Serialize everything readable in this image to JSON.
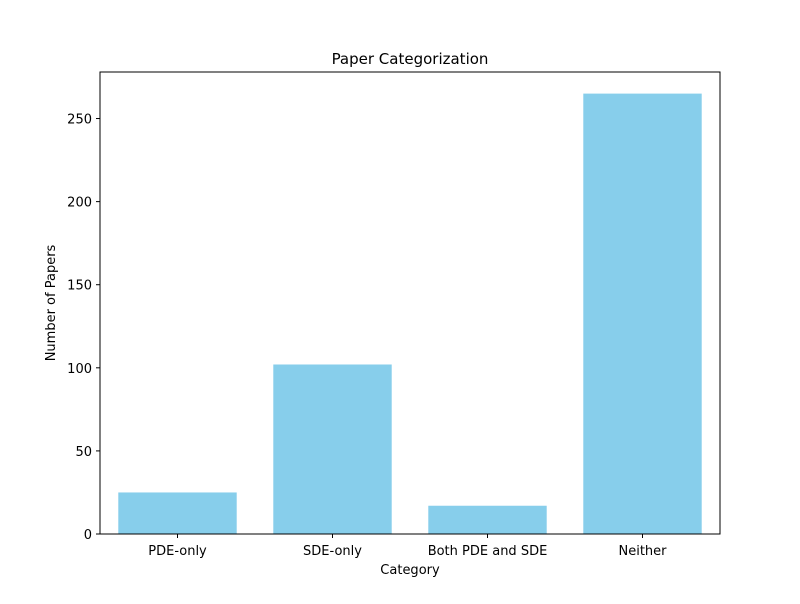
{
  "chart_data": {
    "type": "bar",
    "title": "Paper Categorization",
    "xlabel": "Category",
    "ylabel": "Number of Papers",
    "categories": [
      "PDE-only",
      "SDE-only",
      "Both PDE and SDE",
      "Neither"
    ],
    "values": [
      25,
      102,
      17,
      265
    ],
    "ylim": [
      0,
      278
    ],
    "yticks": [
      0,
      50,
      100,
      150,
      200,
      250
    ],
    "grid": false,
    "bar_color": "#87ceeb"
  }
}
